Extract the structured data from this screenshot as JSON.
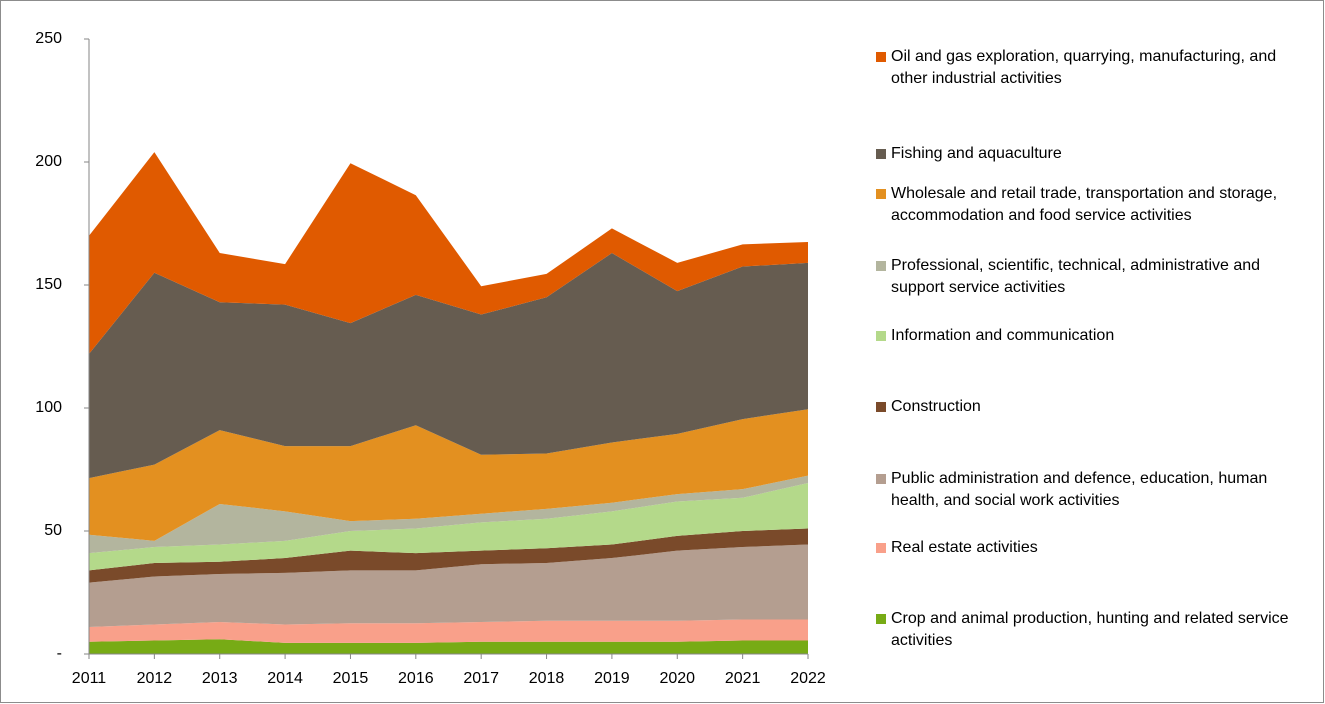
{
  "chart_data": {
    "type": "stacked_area",
    "categories": [
      "2011",
      "2012",
      "2013",
      "2014",
      "2015",
      "2016",
      "2017",
      "2018",
      "2019",
      "2020",
      "2021",
      "2022"
    ],
    "ylim": [
      0,
      250
    ],
    "yticks": [
      {
        "value": 0,
        "label": "-"
      },
      50,
      100,
      150,
      200,
      250
    ],
    "grid": false,
    "legend": "right",
    "series": [
      {
        "name": "Crop and animal production, hunting and related service activities",
        "color": "#77ab15",
        "values": [
          5,
          5.5,
          6,
          4.5,
          4.5,
          4.5,
          5,
          5,
          5,
          5,
          5.5,
          5.5
        ]
      },
      {
        "name": "Real estate activities",
        "color": "#f9a08a",
        "values": [
          6,
          6.5,
          7,
          7.5,
          8,
          8,
          8,
          8.5,
          8.5,
          8.5,
          8.5,
          8.5
        ]
      },
      {
        "name": "Public administration and defence, education, human health, and social work activities",
        "color": "#b49e90",
        "values": [
          18,
          19.5,
          19.5,
          21,
          21.5,
          21.5,
          23.5,
          23.5,
          25.5,
          28.5,
          29.5,
          30.5
        ]
      },
      {
        "name": "Construction",
        "color": "#7a4a2a",
        "values": [
          5,
          5.5,
          5,
          6,
          8,
          7,
          5.5,
          6,
          5.5,
          6,
          6.5,
          6.5
        ]
      },
      {
        "name": "Information and communication",
        "color": "#b4d98a",
        "values": [
          7,
          6.5,
          7,
          7,
          8,
          10,
          11.5,
          12,
          13.5,
          14,
          13.5,
          18.5
        ]
      },
      {
        "name": "Professional, scientific, technical, administrative and support service activities",
        "color": "#b3b59e",
        "values": [
          7.5,
          2.5,
          16.5,
          12,
          4,
          4,
          3.5,
          4,
          3.5,
          3,
          3.5,
          3
        ]
      },
      {
        "name": "Wholesale and retail trade, transportation and storage, accommodation and food service activities",
        "color": "#e39020",
        "values": [
          23,
          31,
          30,
          26.5,
          30.5,
          38,
          24,
          22.5,
          24.5,
          24.5,
          28.5,
          27
        ]
      },
      {
        "name": "Fishing and aquaculture",
        "color": "#665c50",
        "values": [
          50.5,
          78,
          52,
          57.5,
          50,
          53,
          57,
          63.5,
          77,
          58,
          62,
          59.5
        ]
      },
      {
        "name": "Oil and gas exploration, quarrying, manufacturing, and other industrial activities",
        "color": "#e05a00",
        "values": [
          48,
          49,
          20,
          16.5,
          65,
          40.5,
          11.5,
          9.5,
          10,
          11.5,
          9,
          8.5
        ]
      }
    ]
  }
}
